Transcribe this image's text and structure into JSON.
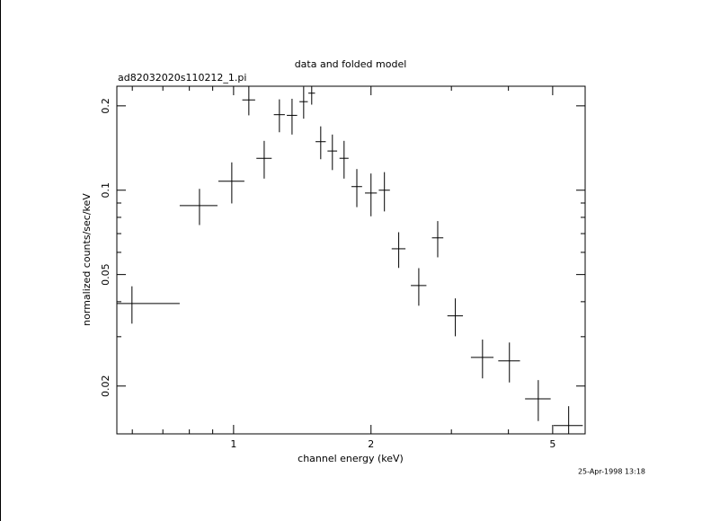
{
  "chart_data": {
    "type": "scatter",
    "title": "data and folded model",
    "subtitle": "ad82032020s110212_1.pi",
    "x_label": "channel energy (keV)",
    "y_label": "normalized counts/sec/keV",
    "timestamp": "25-Apr-1998 13:18",
    "xscale": "log",
    "yscale": "log",
    "xlim": [
      0.555,
      5.89
    ],
    "ylim": [
      0.0135,
      0.235
    ],
    "xticks": [
      1,
      2,
      5
    ],
    "yticks": [
      0.02,
      0.05,
      0.1,
      0.2
    ],
    "xminor": [
      0.6,
      0.7,
      0.8,
      0.9,
      3,
      4
    ],
    "yminor": [
      0.03,
      0.04,
      0.06,
      0.07,
      0.08,
      0.09
    ],
    "color": "#000000",
    "x": [
      0.599,
      0.842,
      0.991,
      1.167,
      1.08,
      1.26,
      1.343,
      1.424,
      1.483,
      1.552,
      1.646,
      1.746,
      1.862,
      2.0,
      2.14,
      2.3,
      2.545,
      2.8,
      3.06,
      3.51,
      4.02,
      4.65,
      5.42
    ],
    "xerr": [
      0.163,
      0.08,
      0.065,
      0.045,
      0.035,
      0.035,
      0.035,
      0.03,
      0.025,
      0.04,
      0.04,
      0.04,
      0.05,
      0.06,
      0.06,
      0.08,
      0.1,
      0.08,
      0.12,
      0.2,
      0.22,
      0.3,
      0.4
    ],
    "y": [
      0.0394,
      0.0881,
      0.1077,
      0.13,
      0.21,
      0.186,
      0.185,
      0.207,
      0.222,
      0.149,
      0.138,
      0.13,
      0.103,
      0.0977,
      0.1,
      0.0618,
      0.0457,
      0.0676,
      0.0356,
      0.0253,
      0.0246,
      0.018,
      0.01445
    ],
    "yerr": [
      0.006,
      0.013,
      0.018,
      0.02,
      0.025,
      0.025,
      0.027,
      0.027,
      0.02,
      0.02,
      0.02,
      0.02,
      0.016,
      0.017,
      0.016,
      0.009,
      0.007,
      0.01,
      0.0055,
      0.004,
      0.004,
      0.003,
      0.0025
    ]
  }
}
